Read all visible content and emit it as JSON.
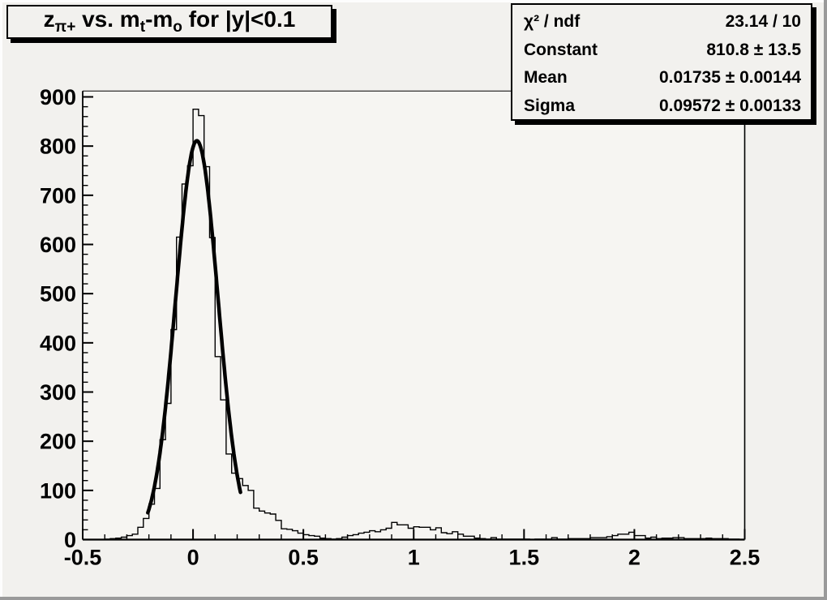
{
  "colors": {
    "canvas_bg": "#f2f1ee",
    "plot_frame_line": "#000000",
    "histogram_line": "#000000",
    "fit_curve": "#000000",
    "bevel_shadow": "#9a9a9a",
    "bevel_highlight": "#fdfdfd",
    "box_border": "#000000",
    "box_shadow": "#000000"
  },
  "title": {
    "plain": "z_{π+} vs. m_{t}-m_{o} for |y|<0.1",
    "segments": [
      {
        "text": "z",
        "script": "normal"
      },
      {
        "text": "π+",
        "script": "sub"
      },
      {
        "text": " vs. m",
        "script": "normal"
      },
      {
        "text": "t",
        "script": "sub"
      },
      {
        "text": "-m",
        "script": "normal"
      },
      {
        "text": "o",
        "script": "sub"
      },
      {
        "text": " for |y|<0.1",
        "script": "normal"
      }
    ]
  },
  "stats_box": {
    "rows": [
      {
        "label": "χ² / ndf",
        "value": "23.14 / 10"
      },
      {
        "label": "Constant",
        "value": "810.8 ± 13.5"
      },
      {
        "label": "Mean",
        "value": "0.01735 ± 0.00144"
      },
      {
        "label": "Sigma",
        "value": "0.09572 ± 0.00133"
      }
    ]
  },
  "chart_data": {
    "type": "bar",
    "subtype": "histogram_with_gaussian_fit",
    "title": "z_{π+} vs. m_{t}-m_{o} for |y|<0.1",
    "xlabel": "",
    "ylabel": "",
    "xlim": [
      -0.5,
      2.5
    ],
    "ylim": [
      0,
      912
    ],
    "grid": false,
    "legend": null,
    "x_major_ticks": [
      -0.5,
      0,
      0.5,
      1,
      1.5,
      2,
      2.5
    ],
    "x_major_tick_labels": [
      "-0.5",
      "0",
      "0.5",
      "1",
      "1.5",
      "2",
      "2.5"
    ],
    "x_minor_tick_step": 0.1,
    "y_major_ticks": [
      0,
      100,
      200,
      300,
      400,
      500,
      600,
      700,
      800,
      900
    ],
    "y_major_tick_labels": [
      "0",
      "100",
      "200",
      "300",
      "400",
      "500",
      "600",
      "700",
      "800",
      "900"
    ],
    "y_minor_tick_step": 20,
    "bin_start": -0.5,
    "bin_width": 0.025,
    "bin_counts": [
      0,
      0,
      0,
      0,
      1,
      2,
      3,
      5,
      8,
      11,
      25,
      43,
      72,
      104,
      203,
      277,
      427,
      615,
      723,
      760,
      875,
      862,
      758,
      614,
      372,
      284,
      174,
      135,
      124,
      110,
      100,
      64,
      58,
      54,
      52,
      39,
      22,
      21,
      18,
      13,
      10,
      8,
      7,
      3,
      2,
      1,
      2,
      5,
      8,
      10,
      13,
      15,
      18,
      16,
      20,
      23,
      35,
      30,
      30,
      23,
      26,
      25,
      25,
      20,
      24,
      14,
      12,
      16,
      11,
      7,
      7,
      3,
      2,
      1,
      4,
      1,
      1,
      1,
      1,
      1,
      1,
      0,
      1,
      1,
      1,
      4,
      1,
      1,
      2,
      2,
      2,
      2,
      4,
      4,
      4,
      6,
      8,
      11,
      11,
      15,
      8,
      8,
      3,
      5,
      2,
      3,
      3,
      4,
      4,
      2,
      2,
      2,
      2,
      3,
      2,
      2,
      2,
      1,
      1,
      0
    ],
    "fit": {
      "model": "gaussian",
      "chi2": 23.14,
      "ndf": 10,
      "constant": 810.8,
      "constant_err": 13.5,
      "mean": 0.01735,
      "mean_err": 0.00144,
      "sigma": 0.09572,
      "sigma_err": 0.00133,
      "draw_range": [
        -0.205,
        0.215
      ]
    }
  }
}
